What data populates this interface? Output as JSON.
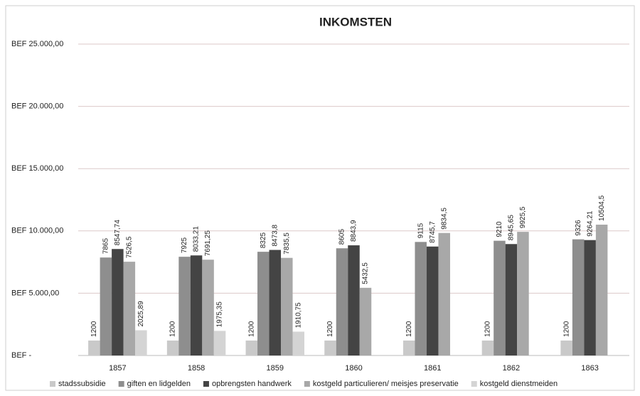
{
  "chart_data": {
    "type": "bar",
    "title": "INKOMSTEN",
    "categories": [
      "1857",
      "1858",
      "1859",
      "1860",
      "1861",
      "1862",
      "1863"
    ],
    "series": [
      {
        "name": "stadssubsidie",
        "color": "#c9c9c9",
        "values": [
          1200,
          1200,
          1200,
          1200,
          1200,
          1200,
          1200
        ]
      },
      {
        "name": "giften en lidgelden",
        "color": "#8e8e8e",
        "values": [
          7865,
          7925,
          8325,
          8605,
          9115,
          9210,
          9326
        ]
      },
      {
        "name": "opbrengsten handwerk",
        "color": "#444444",
        "values": [
          8547.74,
          8033.21,
          8473.8,
          8843.9,
          8745.7,
          8945.65,
          9264.21
        ],
        "value_labels": [
          "8547,74",
          "8033,21",
          "8473,8",
          "8843,9",
          "8745,7",
          "8945,65",
          "9264,21"
        ]
      },
      {
        "name": "kostgeld particulieren/ meisjes preservatie",
        "color": "#a8a8a8",
        "values": [
          7526.5,
          7691.25,
          7835.5,
          5432.5,
          9834.5,
          9925.5,
          10504.5
        ],
        "value_labels": [
          "7526,5",
          "7691,25",
          "7835,5",
          "5432,5",
          "9834,5",
          "9925,5",
          "10504,5"
        ]
      },
      {
        "name": "kostgeld dienstmeiden",
        "color": "#d4d4d4",
        "values": [
          2025.89,
          1975.35,
          1910.75,
          null,
          null,
          null,
          null
        ],
        "value_labels": [
          "2025,89",
          "1975,35",
          "1910,75",
          null,
          null,
          null,
          null
        ]
      }
    ],
    "ylim": [
      0,
      25000
    ],
    "yticks": [
      {
        "value": 0,
        "label": "BEF -"
      },
      {
        "value": 5000,
        "label": "BEF 5.000,00"
      },
      {
        "value": 10000,
        "label": "BEF 10.000,00"
      },
      {
        "value": 15000,
        "label": "BEF 15.000,00"
      },
      {
        "value": 20000,
        "label": "BEF 20.000,00"
      },
      {
        "value": 25000,
        "label": "BEF 25.000,00"
      }
    ],
    "grid": true,
    "legend": "bottom"
  }
}
